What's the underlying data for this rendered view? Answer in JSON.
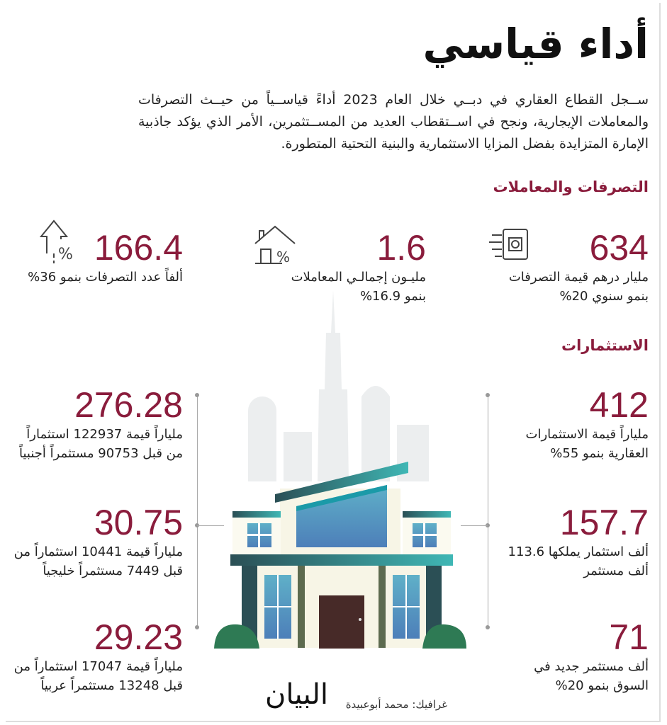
{
  "title": "أداء قياسي",
  "intro": "ســجل القطاع العقاري في دبــي خلال العام 2023 أداءً قياســياً من حيــث التصرفات والمعاملات الإيجارية، ونجح في اســتقطاب العديد من المســتثمرين، الأمر الذي يؤكد جاذبية الإمارة المتزايدة بفضل المزايا الاستثمارية والبنية التحتية المتطورة.",
  "colors": {
    "accent": "#8a1c3c",
    "teal": "#1f6f74",
    "dark_teal": "#2b4f55"
  },
  "transactions": {
    "heading": "التصرفات والمعاملات",
    "stats": [
      {
        "value": "634",
        "desc": "مليار درهم قيمة التصرفات بنمو سنوي 20%",
        "icon": "money-cash-icon"
      },
      {
        "value": "1.6",
        "desc": "مليـون إجمالـي المعاملات بنمو 16.9%",
        "icon": "house-percent-icon"
      },
      {
        "value": "166.4",
        "desc": "ألفاً عدد التصرفات بنمو 36%",
        "icon": "arrow-up-percent-icon"
      }
    ]
  },
  "investments": {
    "heading": "الاستثمارات",
    "right": [
      {
        "value": "412",
        "desc": "ملياراً قيمة الاستثمارات العقارية بنمو 55%"
      },
      {
        "value": "157.7",
        "desc": "ألف استثمار يملكها 113.6 ألف مستثمر"
      },
      {
        "value": "71",
        "desc": "ألف مستثمر جديد في السوق بنمو 20%"
      }
    ],
    "left": [
      {
        "value": "276.28",
        "desc": "ملياراً قيمة 122937 استثماراً من قبل 90753 مستثمراً أجنبياً"
      },
      {
        "value": "30.75",
        "desc": "ملياراً قيمة 10441 استثماراً من قبل 7449 مستثمراً خليجياً"
      },
      {
        "value": "29.23",
        "desc": "ملياراً قيمة 17047 استثماراً من قبل 13248 مستثمراً عربياً"
      }
    ]
  },
  "footer": {
    "credit": "غرافيك: محمد أبوعبيدة",
    "logo": "البيان"
  }
}
